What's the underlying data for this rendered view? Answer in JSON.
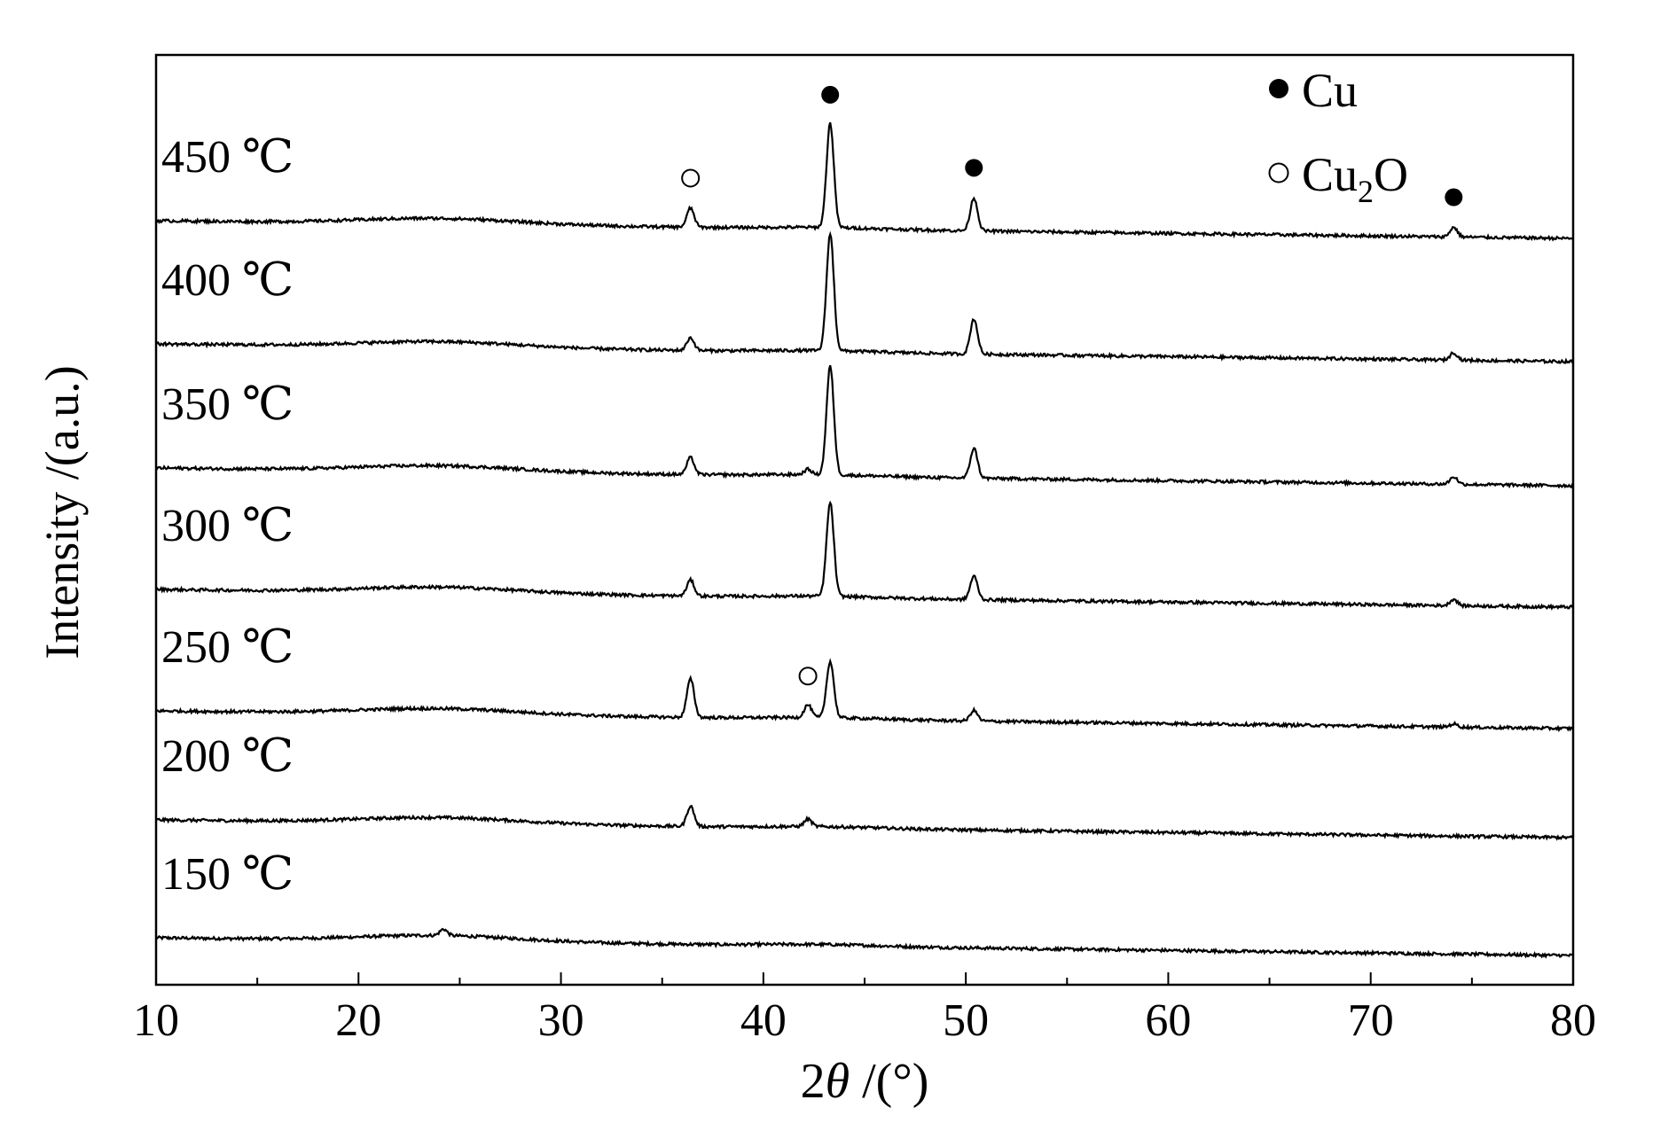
{
  "chart_data": {
    "type": "line",
    "title": "",
    "xlabel_prefix": "2",
    "xlabel_theta": "θ",
    "xlabel_suffix": " /(°)",
    "ylabel": "Intensity /(a.u.)",
    "xlim": [
      10,
      80
    ],
    "xticks": [
      "10",
      "20",
      "30",
      "40",
      "50",
      "60",
      "70",
      "80"
    ],
    "grid": false,
    "legend_position": "top-right",
    "legend": {
      "cu": {
        "label": "Cu"
      },
      "cu2o": {
        "base": "Cu",
        "sub": "2",
        "tail": "O"
      }
    },
    "series": [
      {
        "name": "150 ℃",
        "label": "150 ℃",
        "peaks": [
          {
            "x": 24.2,
            "y": 0.6
          }
        ]
      },
      {
        "name": "200 ℃",
        "label": "200 ℃",
        "peaks": [
          {
            "x": 36.4,
            "y": 1.9
          },
          {
            "x": 42.2,
            "y": 0.7
          }
        ]
      },
      {
        "name": "250 ℃",
        "label": "250 ℃",
        "peaks": [
          {
            "x": 36.4,
            "y": 3.6
          },
          {
            "x": 42.2,
            "y": 1.2
          },
          {
            "x": 43.3,
            "y": 5.3
          },
          {
            "x": 50.4,
            "y": 1.0
          },
          {
            "x": 74.1,
            "y": 0.3
          }
        ]
      },
      {
        "name": "300 ℃",
        "label": "300 ℃",
        "peaks": [
          {
            "x": 36.4,
            "y": 1.5
          },
          {
            "x": 43.3,
            "y": 8.8
          },
          {
            "x": 50.4,
            "y": 2.2
          },
          {
            "x": 74.1,
            "y": 0.6
          }
        ]
      },
      {
        "name": "350 ℃",
        "label": "350 ℃",
        "peaks": [
          {
            "x": 36.4,
            "y": 1.6
          },
          {
            "x": 42.2,
            "y": 0.5
          },
          {
            "x": 43.3,
            "y": 10.2
          },
          {
            "x": 50.4,
            "y": 2.8
          },
          {
            "x": 74.1,
            "y": 0.7
          }
        ]
      },
      {
        "name": "400 ℃",
        "label": "400 ℃",
        "peaks": [
          {
            "x": 36.4,
            "y": 1.2
          },
          {
            "x": 43.3,
            "y": 11.0
          },
          {
            "x": 50.4,
            "y": 3.3
          },
          {
            "x": 74.1,
            "y": 0.7
          }
        ]
      },
      {
        "name": "450 ℃",
        "label": "450 ℃",
        "peaks": [
          {
            "x": 36.4,
            "y": 1.8
          },
          {
            "x": 43.3,
            "y": 9.8
          },
          {
            "x": 50.4,
            "y": 3.1
          },
          {
            "x": 74.1,
            "y": 0.9
          }
        ]
      }
    ],
    "peak_markers": [
      {
        "phase": "Cu2O",
        "x": 36.4,
        "series": "450 ℃"
      },
      {
        "phase": "Cu",
        "x": 43.3,
        "series": "450 ℃"
      },
      {
        "phase": "Cu",
        "x": 50.4,
        "series": "450 ℃"
      },
      {
        "phase": "Cu",
        "x": 74.1,
        "series": "450 ℃"
      },
      {
        "phase": "Cu2O",
        "x": 42.2,
        "series": "250 ℃"
      }
    ]
  },
  "colors": {
    "line": "#000000",
    "background": "#ffffff"
  }
}
